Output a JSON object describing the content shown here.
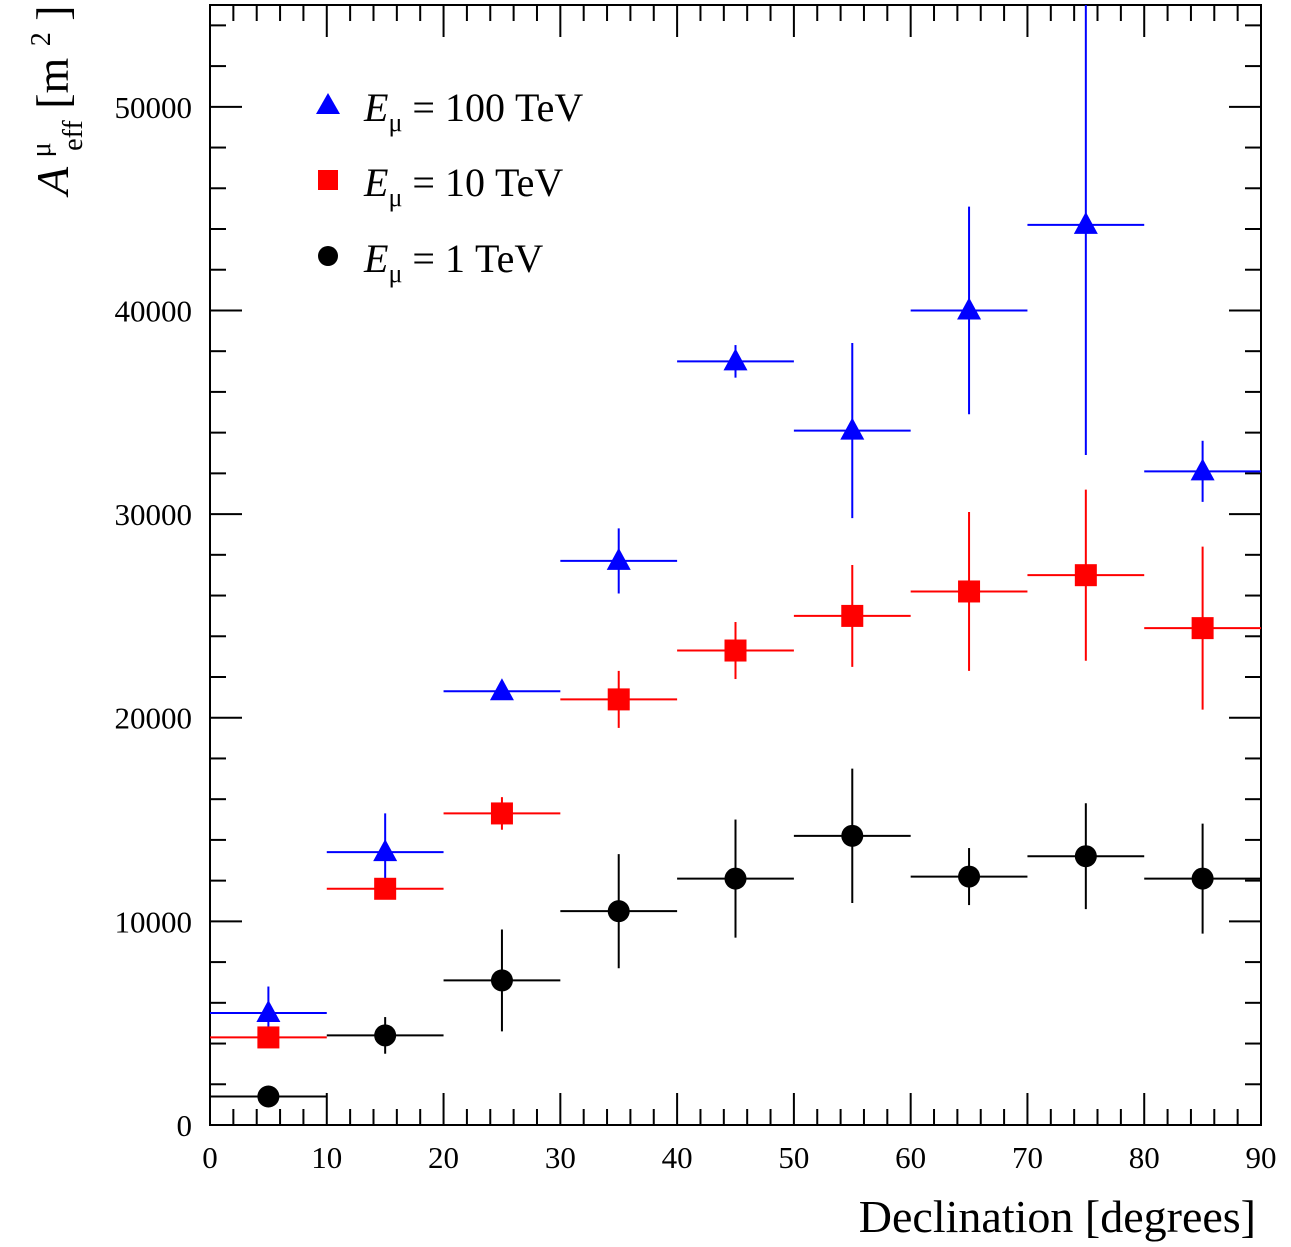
{
  "chart_data": {
    "type": "scatter",
    "xlabel": "Declination [degrees]",
    "ylabel": {
      "symbol": "A",
      "subscript": "eff",
      "superscript": "μ",
      "unit_open": " [m",
      "unit_power": "2",
      "unit_close": "]"
    },
    "xlim": [
      0,
      90
    ],
    "ylim": [
      0,
      55000
    ],
    "x_ticks": [
      0,
      10,
      20,
      30,
      40,
      50,
      60,
      70,
      80,
      90
    ],
    "y_ticks": [
      0,
      10000,
      20000,
      30000,
      40000,
      50000
    ],
    "x_tick_labels": [
      "0",
      "10",
      "20",
      "30",
      "40",
      "50",
      "60",
      "70",
      "80",
      "90"
    ],
    "y_tick_labels": [
      "0",
      "10000",
      "20000",
      "30000",
      "40000",
      "50000"
    ],
    "grid": false,
    "legend_position": "top-left",
    "x_bin_halfwidth": 5,
    "x": [
      5,
      15,
      25,
      35,
      45,
      55,
      65,
      75,
      85
    ],
    "series": [
      {
        "name": {
          "symbol": "E",
          "subscript": "μ",
          "text": " = 100 TeV"
        },
        "marker": "triangle",
        "color": "#0000ff",
        "values": [
          5500,
          13400,
          21300,
          27700,
          37500,
          34100,
          40000,
          44200,
          32100
        ],
        "errors": [
          1300,
          1900,
          300,
          1600,
          800,
          4300,
          5100,
          11300,
          1500
        ]
      },
      {
        "name": {
          "symbol": "E",
          "subscript": "μ",
          "text": " = 10 TeV"
        },
        "marker": "square",
        "color": "#ff0000",
        "values": [
          4300,
          11600,
          15300,
          20900,
          23300,
          25000,
          26200,
          27000,
          24400
        ],
        "errors": [
          500,
          400,
          800,
          1400,
          1400,
          2500,
          3900,
          4200,
          4000
        ]
      },
      {
        "name": {
          "symbol": "E",
          "subscript": "μ",
          "text": " = 1 TeV"
        },
        "marker": "circle",
        "color": "#000000",
        "values": [
          1400,
          4400,
          7100,
          10500,
          12100,
          14200,
          12200,
          13200,
          12100
        ],
        "errors": [
          200,
          900,
          2500,
          2800,
          2900,
          3300,
          1400,
          2600,
          2700
        ]
      }
    ]
  }
}
